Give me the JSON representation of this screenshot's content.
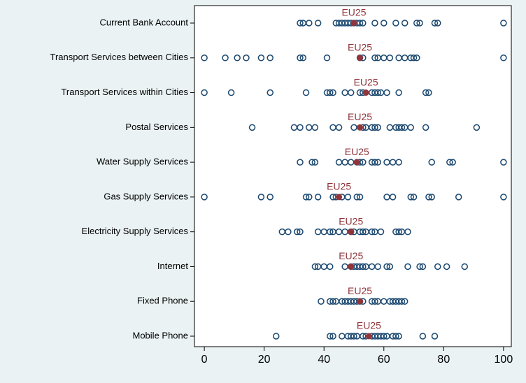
{
  "chart_data": {
    "type": "dot",
    "categories": [
      "Current Bank Account",
      "Transport Services between Cities",
      "Transport Services within Cities",
      "Postal Services",
      "Water Supply Services",
      "Gas Supply Services",
      "Electricity Supply Services",
      "Internet",
      "Fixed Phone",
      "Mobile Phone"
    ],
    "points_color": "#1a476f",
    "points": [
      [
        32,
        33,
        35,
        38,
        44,
        45,
        46,
        47,
        48,
        49,
        50,
        51,
        52,
        53,
        57,
        60,
        64,
        67,
        71,
        72,
        77,
        78,
        100
      ],
      [
        0,
        7,
        11,
        14,
        19,
        22,
        32,
        33,
        41,
        52,
        53,
        57,
        58,
        60,
        62,
        65,
        67,
        69,
        70,
        71,
        100
      ],
      [
        0,
        9,
        22,
        34,
        41,
        42,
        43,
        47,
        49,
        52,
        53,
        56,
        57,
        58,
        59,
        61,
        65,
        74,
        75
      ],
      [
        16,
        30,
        32,
        35,
        37,
        43,
        45,
        50,
        53,
        54,
        56,
        57,
        58,
        62,
        64,
        65,
        66,
        67,
        69,
        74,
        91
      ],
      [
        32,
        36,
        37,
        45,
        47,
        49,
        51,
        52,
        53,
        56,
        57,
        58,
        61,
        63,
        65,
        76,
        82,
        83,
        100
      ],
      [
        0,
        19,
        22,
        34,
        35,
        38,
        43,
        44,
        46,
        48,
        51,
        52,
        61,
        63,
        69,
        70,
        75,
        76,
        85,
        100
      ],
      [
        26,
        28,
        31,
        32,
        38,
        40,
        42,
        43,
        45,
        47,
        49,
        50,
        52,
        53,
        54,
        56,
        57,
        59,
        64,
        65,
        66,
        68
      ],
      [
        37,
        38,
        40,
        42,
        47,
        49,
        50,
        51,
        52,
        53,
        54,
        56,
        58,
        61,
        62,
        68,
        72,
        73,
        78,
        81,
        87
      ],
      [
        39,
        42,
        43,
        44,
        46,
        47,
        48,
        49,
        50,
        51,
        52,
        53,
        56,
        57,
        58,
        60,
        62,
        63,
        64,
        65,
        66,
        67
      ],
      [
        24,
        42,
        43,
        46,
        48,
        49,
        50,
        51,
        53,
        54,
        56,
        57,
        58,
        59,
        60,
        61,
        63,
        64,
        65,
        73,
        77
      ]
    ],
    "eu": {
      "label": "EU25",
      "color": "#90353b",
      "values": [
        50,
        52,
        54,
        52,
        51,
        45,
        49,
        49,
        52,
        55
      ]
    },
    "xlim": [
      -3.3,
      102.6
    ],
    "xticks": [
      0,
      20,
      40,
      60,
      80,
      100
    ]
  }
}
